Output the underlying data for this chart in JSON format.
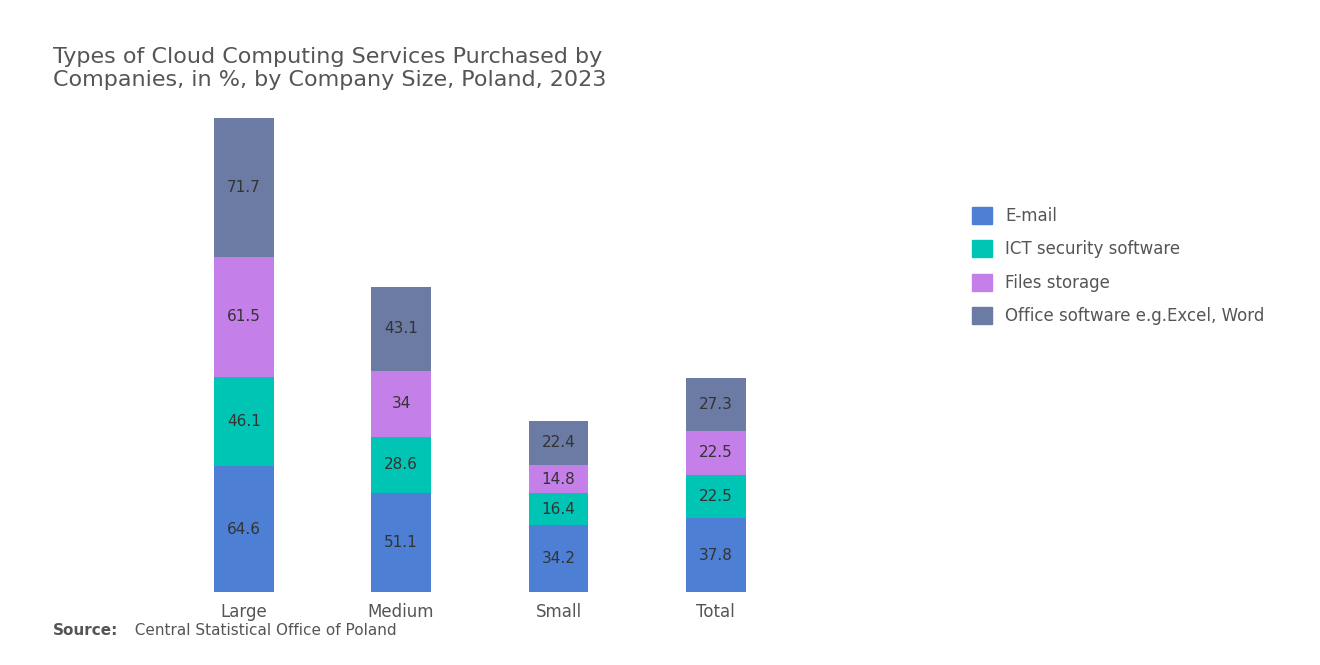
{
  "title": "Types of Cloud Computing Services Purchased by\nCompanies, in %, by Company Size, Poland, 2023",
  "categories": [
    "Large",
    "Medium",
    "Small",
    "Total"
  ],
  "series": {
    "E-mail": [
      64.6,
      51.1,
      34.2,
      37.8
    ],
    "ICT security software": [
      46.1,
      28.6,
      16.4,
      22.5
    ],
    "Files storage": [
      61.5,
      34.0,
      14.8,
      22.5
    ],
    "Office software e.g.Excel, Word": [
      71.7,
      43.1,
      22.4,
      27.3
    ]
  },
  "colors": {
    "E-mail": "#4D7FD4",
    "ICT security software": "#00C4B4",
    "Files storage": "#C57FE8",
    "Office software e.g.Excel, Word": "#6B7BA4"
  },
  "source_bold": "Source:",
  "source_rest": "  Central Statistical Office of Poland",
  "background_color": "#FFFFFF",
  "bar_width": 0.38,
  "title_fontsize": 16,
  "label_fontsize": 11,
  "tick_fontsize": 12,
  "legend_fontsize": 12,
  "source_fontsize": 11
}
